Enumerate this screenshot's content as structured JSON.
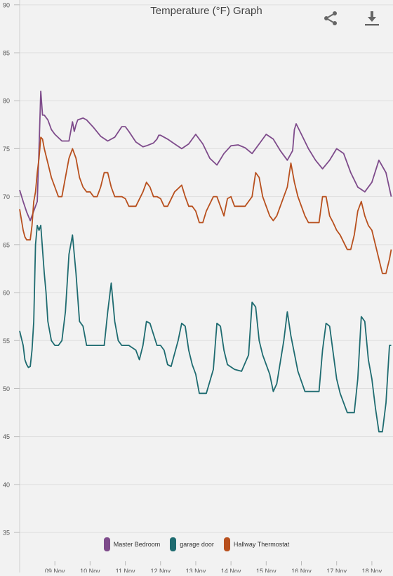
{
  "chart_data": {
    "type": "line",
    "title": "Temperature (°F) Graph",
    "xlabel": "",
    "ylabel": "",
    "ylim": [
      32,
      90.5
    ],
    "yticks": [
      35,
      40,
      45,
      50,
      55,
      60,
      65,
      70,
      75,
      80,
      85,
      90
    ],
    "xlim": [
      0,
      10.6
    ],
    "xticks": [
      {
        "x": 1.0,
        "label": "09 Nov"
      },
      {
        "x": 2.0,
        "label": "10 Nov"
      },
      {
        "x": 3.0,
        "label": "11 Nov"
      },
      {
        "x": 4.0,
        "label": "12 Nov"
      },
      {
        "x": 5.0,
        "label": "13 Nov"
      },
      {
        "x": 6.0,
        "label": "14 Nov"
      },
      {
        "x": 7.0,
        "label": "15 Nov"
      },
      {
        "x": 8.0,
        "label": "16 Nov"
      },
      {
        "x": 9.0,
        "label": "17 Nov"
      },
      {
        "x": 10.0,
        "label": "18 Nov"
      }
    ],
    "grid": true,
    "legend_position": "bottom",
    "series": [
      {
        "name": "Master Bedroom",
        "color": "#7e4b8b",
        "x": [
          0,
          0.1,
          0.2,
          0.3,
          0.4,
          0.5,
          0.55,
          0.6,
          0.65,
          0.7,
          0.8,
          0.9,
          1.0,
          1.2,
          1.4,
          1.5,
          1.55,
          1.6,
          1.65,
          1.8,
          1.9,
          2.1,
          2.3,
          2.5,
          2.7,
          2.9,
          3.0,
          3.1,
          3.3,
          3.5,
          3.6,
          3.8,
          3.85,
          3.9,
          3.95,
          4.0,
          4.2,
          4.4,
          4.6,
          4.8,
          5.0,
          5.2,
          5.4,
          5.6,
          5.8,
          6.0,
          6.2,
          6.4,
          6.6,
          6.8,
          7.0,
          7.2,
          7.4,
          7.6,
          7.75,
          7.8,
          7.85,
          8.0,
          8.2,
          8.4,
          8.6,
          8.8,
          9.0,
          9.2,
          9.4,
          9.6,
          9.8,
          10.0,
          10.2,
          10.4,
          10.55
        ],
        "values": [
          70.7,
          69.5,
          68.4,
          67.5,
          68.5,
          69.5,
          75.0,
          81.0,
          78.5,
          78.5,
          78.0,
          77.0,
          76.5,
          75.8,
          75.8,
          77.8,
          76.8,
          77.5,
          78.0,
          78.2,
          78.0,
          77.2,
          76.3,
          75.8,
          76.2,
          77.3,
          77.3,
          76.8,
          75.7,
          75.2,
          75.3,
          75.6,
          75.8,
          76.0,
          76.4,
          76.4,
          76.0,
          75.5,
          75.0,
          75.5,
          76.5,
          75.5,
          74.0,
          73.3,
          74.5,
          75.3,
          75.4,
          75.1,
          74.5,
          75.5,
          76.5,
          76.0,
          74.8,
          73.8,
          74.8,
          77.0,
          77.6,
          76.5,
          75.0,
          73.8,
          72.9,
          73.8,
          75.0,
          74.5,
          72.5,
          71.0,
          70.5,
          71.5,
          73.8,
          72.5,
          70.0
        ]
      },
      {
        "name": "garage door",
        "color": "#1e6b70",
        "x": [
          0,
          0.1,
          0.15,
          0.2,
          0.25,
          0.3,
          0.35,
          0.4,
          0.45,
          0.5,
          0.55,
          0.6,
          0.7,
          0.75,
          0.8,
          0.9,
          1.0,
          1.1,
          1.2,
          1.3,
          1.4,
          1.5,
          1.6,
          1.7,
          1.8,
          1.9,
          2.0,
          2.2,
          2.4,
          2.5,
          2.6,
          2.7,
          2.8,
          2.9,
          3.1,
          3.3,
          3.4,
          3.5,
          3.6,
          3.7,
          3.9,
          4.0,
          4.1,
          4.2,
          4.3,
          4.5,
          4.6,
          4.7,
          4.8,
          4.9,
          5.0,
          5.1,
          5.3,
          5.5,
          5.6,
          5.7,
          5.8,
          5.9,
          6.1,
          6.3,
          6.5,
          6.6,
          6.7,
          6.8,
          6.9,
          7.1,
          7.2,
          7.3,
          7.5,
          7.6,
          7.7,
          7.9,
          8.1,
          8.3,
          8.5,
          8.6,
          8.7,
          8.8,
          9.0,
          9.1,
          9.3,
          9.5,
          9.6,
          9.7,
          9.8,
          9.9,
          10.0,
          10.1,
          10.2,
          10.3,
          10.4,
          10.5,
          10.55
        ],
        "values": [
          56.0,
          54.5,
          53.0,
          52.5,
          52.2,
          52.3,
          54.0,
          57.0,
          65.0,
          67.0,
          66.5,
          67.0,
          62.0,
          60.0,
          57.0,
          55.0,
          54.5,
          54.5,
          55.0,
          58.0,
          64.0,
          66.0,
          62.0,
          57.0,
          56.5,
          54.5,
          54.5,
          54.5,
          54.5,
          58.0,
          61.0,
          57.0,
          55.0,
          54.5,
          54.5,
          54.0,
          53.0,
          54.5,
          57.0,
          56.8,
          54.5,
          54.5,
          54.0,
          52.5,
          52.3,
          55.0,
          56.8,
          56.5,
          54.0,
          52.5,
          51.5,
          49.5,
          49.5,
          52.0,
          56.8,
          56.5,
          54.0,
          52.5,
          52.0,
          51.8,
          53.5,
          59.0,
          58.5,
          55.0,
          53.5,
          51.5,
          49.7,
          50.5,
          55.0,
          58.0,
          55.5,
          51.8,
          49.7,
          49.7,
          49.7,
          54.0,
          56.8,
          56.5,
          51.0,
          49.5,
          47.5,
          47.5,
          51.0,
          57.5,
          57.0,
          53.0,
          51.0,
          48.0,
          45.5,
          45.5,
          48.5,
          54.5,
          54.5
        ]
      },
      {
        "name": "Hallway Thermostat",
        "color": "#b8501e",
        "x": [
          0,
          0.1,
          0.15,
          0.2,
          0.3,
          0.35,
          0.4,
          0.45,
          0.5,
          0.55,
          0.6,
          0.65,
          0.7,
          0.8,
          0.9,
          1.0,
          1.1,
          1.2,
          1.3,
          1.4,
          1.5,
          1.6,
          1.7,
          1.8,
          1.9,
          2.0,
          2.1,
          2.2,
          2.3,
          2.4,
          2.5,
          2.6,
          2.7,
          2.8,
          2.9,
          3.0,
          3.1,
          3.3,
          3.5,
          3.6,
          3.7,
          3.8,
          3.9,
          4.0,
          4.1,
          4.2,
          4.4,
          4.6,
          4.7,
          4.8,
          4.9,
          5.0,
          5.1,
          5.2,
          5.3,
          5.5,
          5.6,
          5.7,
          5.8,
          5.9,
          6.0,
          6.1,
          6.2,
          6.4,
          6.6,
          6.7,
          6.8,
          6.9,
          7.0,
          7.1,
          7.2,
          7.3,
          7.5,
          7.6,
          7.7,
          7.8,
          7.9,
          8.0,
          8.1,
          8.2,
          8.3,
          8.5,
          8.6,
          8.7,
          8.8,
          8.9,
          9.0,
          9.1,
          9.3,
          9.4,
          9.5,
          9.6,
          9.7,
          9.8,
          9.9,
          10.0,
          10.2,
          10.3,
          10.4,
          10.5,
          10.55
        ],
        "values": [
          68.7,
          66.5,
          65.8,
          65.5,
          65.5,
          67.0,
          69.5,
          70.5,
          72.5,
          74.0,
          76.2,
          76.0,
          75.0,
          73.5,
          72.0,
          71.0,
          70.0,
          70.0,
          72.0,
          74.0,
          75.0,
          74.0,
          72.0,
          71.0,
          70.5,
          70.5,
          70.0,
          70.0,
          71.0,
          72.5,
          72.5,
          71.0,
          70.0,
          70.0,
          70.0,
          69.8,
          69.0,
          69.0,
          70.5,
          71.5,
          71.0,
          70.0,
          70.0,
          69.8,
          69.0,
          69.0,
          70.5,
          71.2,
          70.0,
          69.0,
          69.0,
          68.5,
          67.3,
          67.3,
          68.5,
          70.0,
          70.0,
          69.0,
          68.0,
          69.8,
          70.0,
          69.0,
          69.0,
          69.0,
          70.0,
          72.5,
          72.0,
          70.0,
          69.0,
          68.0,
          67.5,
          68.0,
          70.0,
          71.0,
          73.5,
          71.5,
          70.0,
          69.0,
          68.0,
          67.3,
          67.3,
          67.3,
          70.0,
          70.0,
          68.0,
          67.3,
          66.5,
          66.0,
          64.5,
          64.5,
          66.0,
          68.5,
          69.5,
          68.0,
          67.0,
          66.5,
          63.5,
          62.0,
          62.0,
          63.5,
          64.5
        ]
      }
    ]
  },
  "toolbar": {
    "share_icon": "share-icon",
    "download_icon": "download-icon"
  }
}
